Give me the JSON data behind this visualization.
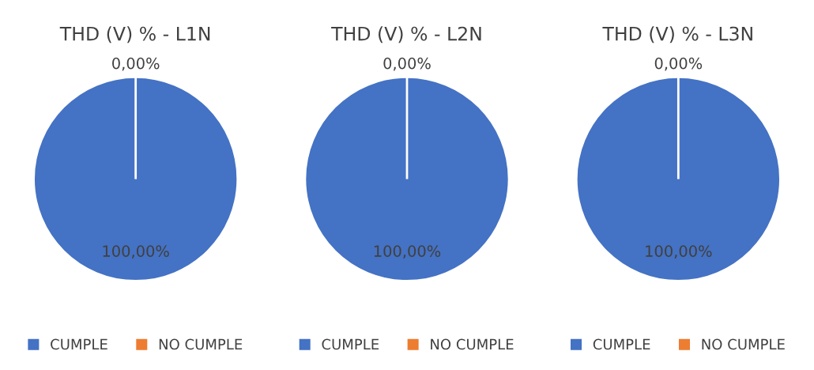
{
  "chart_data": [
    {
      "type": "pie",
      "title": "THD (V) % - L1N",
      "categories": [
        "CUMPLE",
        "NO CUMPLE"
      ],
      "values": [
        100,
        0
      ],
      "colors": [
        "#4472c4",
        "#ed7d31"
      ],
      "value_labels": [
        "100,00%",
        "0,00%"
      ],
      "legend": "bottom"
    },
    {
      "type": "pie",
      "title": "THD (V) % - L2N",
      "categories": [
        "CUMPLE",
        "NO CUMPLE"
      ],
      "values": [
        100,
        0
      ],
      "colors": [
        "#4472c4",
        "#ed7d31"
      ],
      "value_labels": [
        "100,00%",
        "0,00%"
      ],
      "legend": "bottom"
    },
    {
      "type": "pie",
      "title": "THD (V) % - L3N",
      "categories": [
        "CUMPLE",
        "NO CUMPLE"
      ],
      "values": [
        100,
        0
      ],
      "colors": [
        "#4472c4",
        "#ed7d31"
      ],
      "value_labels": [
        "100,00%",
        "0,00%"
      ],
      "legend": "bottom"
    }
  ]
}
